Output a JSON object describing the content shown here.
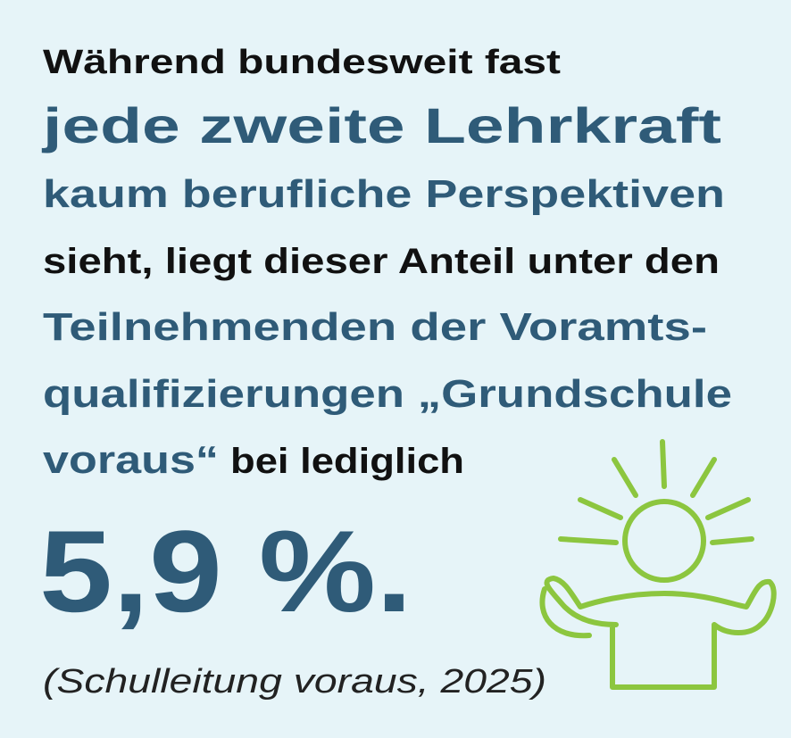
{
  "lines": [
    "Während bundesweit fast",
    "jede zweite Lehrkraft",
    "kaum berufliche Perspektiven",
    "sieht, liegt dieser Anteil unter den",
    "Teilnehmenden der Voramts-",
    "qualifizierungen „Grundschule"
  ],
  "last_line": {
    "highlight": "voraus“",
    "text": "bei lediglich"
  },
  "figure": "5,9 %.",
  "source": "(Schulleitung voraus, 2025)"
}
